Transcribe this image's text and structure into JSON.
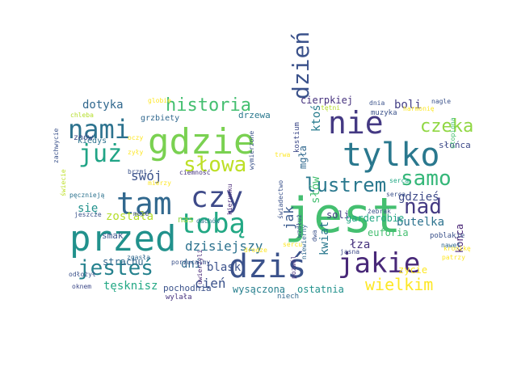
{
  "words": [
    {
      "text": "jest",
      "color": "#44bf70"
    },
    {
      "text": "przed",
      "color": "#21918c"
    },
    {
      "text": "dziś",
      "color": "#3b528b"
    },
    {
      "text": "gdzie",
      "color": "#7ad151"
    },
    {
      "text": "tylko",
      "color": "#2a788e"
    },
    {
      "text": "czy",
      "color": "#3e4a89"
    },
    {
      "text": "tam",
      "color": "#31688e"
    },
    {
      "text": "tobą",
      "color": "#22a884"
    },
    {
      "text": "jakie",
      "color": "#482878"
    },
    {
      "text": "nie",
      "color": "#443983"
    },
    {
      "text": "nami",
      "color": "#2c728e"
    },
    {
      "text": "już",
      "color": "#20a486"
    },
    {
      "text": "dzień",
      "color": "#3b528b"
    },
    {
      "text": "jesteś",
      "color": "#26828e"
    },
    {
      "text": "samo",
      "color": "#35b779"
    },
    {
      "text": "nad",
      "color": "#443a83"
    },
    {
      "text": "lustrem",
      "color": "#2a788e"
    },
    {
      "text": "słowa",
      "color": "#bddf26"
    },
    {
      "text": "historia",
      "color": "#44bf70"
    },
    {
      "text": "czeka",
      "color": "#90d743"
    },
    {
      "text": "wielkim",
      "color": "#fde725"
    },
    {
      "text": "dzisiejszy",
      "color": "#2c728e"
    },
    {
      "text": "gdzieś",
      "color": "#3e4a89"
    },
    {
      "text": "dotyka",
      "color": "#31688e"
    },
    {
      "text": "ktoś",
      "color": "#287c8e"
    },
    {
      "text": "boli",
      "color": "#433e85"
    },
    {
      "text": "swój",
      "color": "#3b528b"
    },
    {
      "text": "się",
      "color": "#21918c"
    },
    {
      "text": "jak",
      "color": "#38588c"
    },
    {
      "text": "cień",
      "color": "#3b528b"
    },
    {
      "text": "dni",
      "color": "#31688e"
    },
    {
      "text": "tęsknisz",
      "color": "#22a884"
    },
    {
      "text": "kwiat",
      "color": "#2a788e"
    },
    {
      "text": "słów",
      "color": "#44bf70"
    },
    {
      "text": "łza",
      "color": "#46327e"
    },
    {
      "text": "butelka",
      "color": "#2c728e"
    },
    {
      "text": "zycie",
      "color": "#fde725"
    },
    {
      "text": "końca",
      "color": "#482475"
    },
    {
      "text": "ostatnia",
      "color": "#21918c"
    },
    {
      "text": "wysączona",
      "color": "#277f8e"
    },
    {
      "text": "blask",
      "color": "#3b528b"
    },
    {
      "text": "strachu",
      "color": "#31688e"
    },
    {
      "text": "została",
      "color": "#b5de2b"
    },
    {
      "text": "soli",
      "color": "#433e85"
    },
    {
      "text": "garderobie",
      "color": "#22a884"
    },
    {
      "text": "euforia",
      "color": "#44bf70"
    },
    {
      "text": "cierpkiej",
      "color": "#46327e"
    },
    {
      "text": "mgła",
      "color": "#31688e"
    },
    {
      "text": "słońca",
      "color": "#3e4a89"
    },
    {
      "text": "drzewa",
      "color": "#2a788e"
    },
    {
      "text": "grzbiety",
      "color": "#31688e"
    },
    {
      "text": "smak",
      "color": "#3b528b"
    },
    {
      "text": "kiedys",
      "color": "#2c728e"
    },
    {
      "text": "znów",
      "color": "#3e4a89"
    },
    {
      "text": "nas",
      "color": "#8fd744"
    },
    {
      "text": "pochodnia",
      "color": "#3b528b"
    },
    {
      "text": "niech",
      "color": "#31688e"
    },
    {
      "text": "poblakie",
      "color": "#3b528b"
    },
    {
      "text": "wylała",
      "color": "#46327e"
    },
    {
      "text": "kostium",
      "color": "#3e4a89"
    },
    {
      "text": "muzyka",
      "color": "#3b528b"
    },
    {
      "text": "jasna",
      "color": "#3e4a89"
    },
    {
      "text": "chleba",
      "color": "#b5de2b"
    },
    {
      "text": "globie",
      "color": "#fde725"
    },
    {
      "text": "oczy",
      "color": "#fde725"
    },
    {
      "text": "zyły",
      "color": "#fde725"
    },
    {
      "text": "mierzy",
      "color": "#fde725"
    },
    {
      "text": "brzmi",
      "color": "#3b528b"
    },
    {
      "text": "pęcznieją",
      "color": "#2c728e"
    },
    {
      "text": "ciemność",
      "color": "#46327e"
    },
    {
      "text": "dachów",
      "color": "#2a788e"
    },
    {
      "text": "wymierzone",
      "color": "#3b528b"
    },
    {
      "text": "uwierzyli",
      "color": "#482878"
    },
    {
      "text": "kierunku",
      "color": "#482878"
    },
    {
      "text": "niewierny",
      "color": "#31688e"
    },
    {
      "text": "pozwól",
      "color": "#46327e"
    },
    {
      "text": "świecie",
      "color": "#bddf26"
    },
    {
      "text": "zachwycie",
      "color": "#3b528b"
    },
    {
      "text": "jeszcze",
      "color": "#3b528b"
    },
    {
      "text": "może",
      "color": "#3b528b"
    },
    {
      "text": "odłożył",
      "color": "#3b528b"
    },
    {
      "text": "zgasła",
      "color": "#31688e"
    },
    {
      "text": "porzucajmy",
      "color": "#3b528b"
    },
    {
      "text": "oknem",
      "color": "#3e4a89"
    },
    {
      "text": "drodze",
      "color": "#fde725"
    },
    {
      "text": "dnia",
      "color": "#3b528b"
    },
    {
      "text": "nagle",
      "color": "#3b528b"
    },
    {
      "text": "harmonię",
      "color": "#fde725"
    },
    {
      "text": "tętni",
      "color": "#b5de2b"
    },
    {
      "text": "utopiona",
      "color": "#44bf70"
    },
    {
      "text": "serca",
      "color": "#3b528b"
    },
    {
      "text": "żebrak",
      "color": "#3b528b"
    },
    {
      "text": "kronikę",
      "color": "#fde725"
    },
    {
      "text": "patrzy",
      "color": "#fde725"
    },
    {
      "text": "nawet",
      "color": "#31688e"
    },
    {
      "text": "dwa",
      "color": "#3b528b"
    },
    {
      "text": "wzdłuż",
      "color": "#3b528b"
    },
    {
      "text": "serca",
      "color": "#22a884"
    },
    {
      "text": "sercu",
      "color": "#fde725"
    },
    {
      "text": "trwa",
      "color": "#fde725"
    },
    {
      "text": "świadectwo",
      "color": "#3b528b"
    }
  ]
}
